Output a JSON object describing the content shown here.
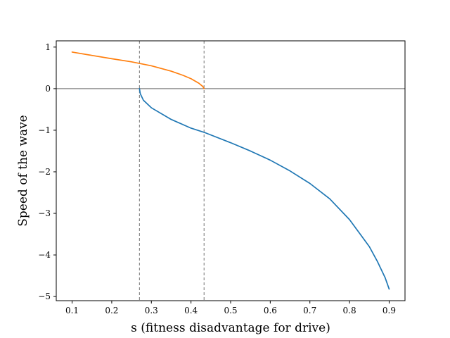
{
  "chart_data": {
    "type": "line",
    "title": "",
    "xlabel": "s (fitness disadvantage for drive)",
    "ylabel": "Speed of the wave",
    "xlim": [
      0.06,
      0.94
    ],
    "ylim": [
      -5.1,
      1.15
    ],
    "xticks": [
      "0.1",
      "0.2",
      "0.3",
      "0.4",
      "0.5",
      "0.6",
      "0.7",
      "0.8",
      "0.9"
    ],
    "xtick_values": [
      0.1,
      0.2,
      0.3,
      0.4,
      0.5,
      0.6,
      0.7,
      0.8,
      0.9
    ],
    "yticks": [
      "1",
      "0",
      "−1",
      "−2",
      "−3",
      "−4",
      "−5"
    ],
    "ytick_values": [
      1,
      0,
      -1,
      -2,
      -3,
      -4,
      -5
    ],
    "grid": false,
    "reference_lines": {
      "horizontal_y": 0,
      "vertical_x": [
        0.27,
        0.433
      ],
      "colors": {
        "horizontal": "#808080",
        "vertical": "#808080"
      }
    },
    "series": [
      {
        "color": "#ff7f0e",
        "x": [
          0.1,
          0.15,
          0.2,
          0.25,
          0.3,
          0.35,
          0.38,
          0.4,
          0.42,
          0.43,
          0.433
        ],
        "y": [
          0.88,
          0.8,
          0.72,
          0.645,
          0.55,
          0.42,
          0.32,
          0.24,
          0.13,
          0.05,
          0.0
        ]
      },
      {
        "color": "#1f77b4",
        "x": [
          0.27,
          0.272,
          0.28,
          0.3,
          0.35,
          0.4,
          0.433,
          0.5,
          0.55,
          0.6,
          0.65,
          0.7,
          0.75,
          0.8,
          0.85,
          0.87,
          0.89,
          0.9
        ],
        "y": [
          0.0,
          -0.12,
          -0.28,
          -0.46,
          -0.74,
          -0.95,
          -1.05,
          -1.3,
          -1.5,
          -1.72,
          -1.98,
          -2.28,
          -2.65,
          -3.15,
          -3.8,
          -4.15,
          -4.55,
          -4.82
        ]
      }
    ]
  }
}
